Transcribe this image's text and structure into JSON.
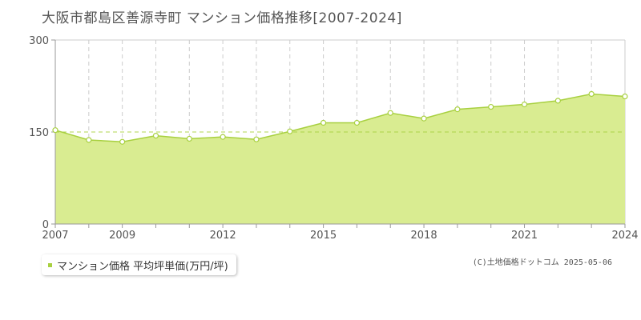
{
  "chart_data": {
    "type": "area",
    "title": "大阪市都島区善源寺町 マンション価格推移[2007-2024]",
    "x": [
      2007,
      2008,
      2009,
      2010,
      2011,
      2012,
      2013,
      2014,
      2015,
      2016,
      2017,
      2018,
      2019,
      2020,
      2021,
      2022,
      2023,
      2024
    ],
    "x_tick_labels": [
      "2007",
      "2009",
      "2012",
      "2015",
      "2018",
      "2021",
      "2024"
    ],
    "y_tick_labels": [
      "0",
      "150",
      "300"
    ],
    "ylim": [
      0,
      300
    ],
    "xlim": [
      2007,
      2024
    ],
    "series": [
      {
        "name": "マンション価格 平均坪単価(万円/坪)",
        "values": [
          153,
          137,
          134,
          144,
          139,
          142,
          138,
          151,
          165,
          165,
          181,
          172,
          187,
          191,
          195,
          201,
          212,
          208
        ]
      }
    ],
    "grid": {
      "vertical": true,
      "horizontal_midline": true
    },
    "legend_position": "bottom-left",
    "colors": {
      "fill": "#d9ec91",
      "line": "#a8d040",
      "marker_fill": "#ffffff",
      "grid": "#cccccc",
      "axis": "#999999"
    }
  },
  "legend": {
    "label": "マンション価格 平均坪単価(万円/坪)"
  },
  "credit": "(C)土地価格ドットコム 2025-05-06"
}
